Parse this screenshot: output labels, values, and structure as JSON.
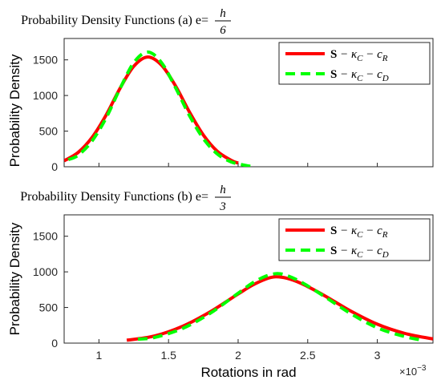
{
  "chart_data": [
    {
      "type": "line",
      "title": "Probability Density Functions (a) e=",
      "title_fraction": {
        "numerator": "h",
        "denominator": "6"
      },
      "xlabel": "",
      "ylabel": "Probability Density",
      "xlim": [
        0.75,
        3.4
      ],
      "ylim": [
        0,
        1800
      ],
      "yticks": [
        0,
        500,
        1000,
        1500
      ],
      "ytick_labels": [
        "0",
        "500",
        "1000",
        "1500"
      ],
      "legend_position": "top-right",
      "series": [
        {
          "name": "S − κC − cR",
          "legend_parts": [
            "S",
            " − κ",
            "C",
            " − c",
            "R"
          ],
          "color": "#ff0000",
          "style": "solid",
          "x": [
            0.75,
            0.85,
            0.95,
            1.05,
            1.15,
            1.25,
            1.35,
            1.45,
            1.55,
            1.65,
            1.75,
            1.85,
            1.95,
            2.0
          ],
          "y": [
            83,
            200,
            410,
            720,
            1095,
            1410,
            1540,
            1425,
            1135,
            770,
            445,
            218,
            90,
            52
          ]
        },
        {
          "name": "S − κC − cD",
          "legend_parts": [
            "S",
            " − κ",
            "C",
            " − c",
            "D"
          ],
          "color": "#00ff00",
          "style": "dashed",
          "x": [
            0.78,
            0.85,
            0.95,
            1.05,
            1.15,
            1.25,
            1.35,
            1.45,
            1.55,
            1.65,
            1.75,
            1.85,
            1.95,
            2.05,
            2.1
          ],
          "y": [
            100,
            160,
            360,
            680,
            1090,
            1460,
            1610,
            1460,
            1110,
            720,
            395,
            180,
            68,
            20,
            5
          ]
        }
      ]
    },
    {
      "type": "line",
      "title": "Probability Density Functions (b) e=",
      "title_fraction": {
        "numerator": "h",
        "denominator": "3"
      },
      "xlabel": "Rotations in rad",
      "ylabel": "Probability Density",
      "xlim": [
        0.75,
        3.4
      ],
      "ylim": [
        0,
        1800
      ],
      "xticks": [
        1,
        1.5,
        2,
        2.5,
        3
      ],
      "xtick_labels": [
        "1",
        "1.5",
        "2",
        "2.5",
        "3"
      ],
      "yticks": [
        0,
        500,
        1000,
        1500
      ],
      "ytick_labels": [
        "0",
        "500",
        "1000",
        "1500"
      ],
      "x_exponent_base": "×10",
      "x_exponent_power": "−3",
      "legend_position": "top-right",
      "series": [
        {
          "name": "S − κC − cR",
          "legend_parts": [
            "S",
            " − κ",
            "C",
            " − c",
            "R"
          ],
          "color": "#ff0000",
          "style": "solid",
          "x": [
            1.2,
            1.4,
            1.6,
            1.8,
            2.0,
            2.1,
            2.2,
            2.27,
            2.35,
            2.45,
            2.6,
            2.8,
            3.0,
            3.2,
            3.4
          ],
          "y": [
            40,
            100,
            235,
            440,
            690,
            810,
            900,
            930,
            910,
            840,
            690,
            460,
            265,
            135,
            58
          ]
        },
        {
          "name": "S − κC − cD",
          "legend_parts": [
            "S",
            " − κ",
            "C",
            " − c",
            "D"
          ],
          "color": "#00ff00",
          "style": "dashed",
          "x": [
            1.28,
            1.4,
            1.6,
            1.8,
            2.0,
            2.1,
            2.2,
            2.28,
            2.35,
            2.45,
            2.6,
            2.8,
            3.0,
            3.2,
            3.3
          ],
          "y": [
            55,
            80,
            205,
            420,
            700,
            840,
            940,
            975,
            950,
            860,
            680,
            425,
            215,
            90,
            50
          ]
        }
      ]
    }
  ]
}
